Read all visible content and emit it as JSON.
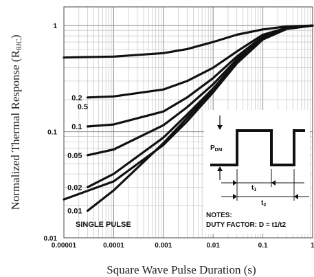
{
  "chart_data": {
    "type": "line",
    "xlabel": "Square Wave Pulse Duration (s)",
    "ylabel": "Normalized Thermal Response (R",
    "ylabel_sub": "θJC",
    "ylabel_close": ")",
    "x_scale": "log",
    "y_scale": "log",
    "xlim": [
      1e-05,
      1
    ],
    "ylim": [
      0.01,
      1.5
    ],
    "grid": true,
    "x_ticks": [
      "0.00001",
      "0.0001",
      "0.001",
      "0.01",
      "0.1",
      "1"
    ],
    "y_ticks": [
      "1",
      "0.1",
      "0.01"
    ],
    "series": [
      {
        "name": "0.5",
        "x": [
          1e-05,
          0.0001,
          0.001,
          0.003,
          0.01,
          0.03,
          0.1,
          0.3,
          1
        ],
        "y": [
          0.5,
          0.51,
          0.55,
          0.6,
          0.7,
          0.82,
          0.92,
          0.98,
          1.0
        ]
      },
      {
        "name": "0.2",
        "x": [
          3e-05,
          0.0001,
          0.001,
          0.003,
          0.01,
          0.03,
          0.1,
          0.3,
          1
        ],
        "y": [
          0.21,
          0.215,
          0.25,
          0.3,
          0.4,
          0.57,
          0.82,
          0.95,
          1.0
        ]
      },
      {
        "name": "0.1",
        "x": [
          3e-05,
          0.0001,
          0.001,
          0.003,
          0.01,
          0.03,
          0.1,
          0.3,
          1
        ],
        "y": [
          0.112,
          0.117,
          0.155,
          0.21,
          0.32,
          0.51,
          0.79,
          0.94,
          1.0
        ]
      },
      {
        "name": "0.05",
        "x": [
          3e-05,
          0.0001,
          0.001,
          0.003,
          0.01,
          0.03,
          0.1,
          0.3,
          1
        ],
        "y": [
          0.06,
          0.068,
          0.115,
          0.17,
          0.28,
          0.48,
          0.77,
          0.94,
          1.0
        ]
      },
      {
        "name": "0.02",
        "x": [
          3e-05,
          0.0001,
          0.001,
          0.003,
          0.01,
          0.03,
          0.1,
          0.3,
          1
        ],
        "y": [
          0.03,
          0.04,
          0.088,
          0.145,
          0.255,
          0.46,
          0.76,
          0.93,
          1.0
        ]
      },
      {
        "name": "0.01",
        "x": [
          3e-05,
          0.0001,
          0.001,
          0.003,
          0.01,
          0.03,
          0.1,
          0.3,
          1
        ],
        "y": [
          0.018,
          0.028,
          0.078,
          0.135,
          0.245,
          0.45,
          0.75,
          0.93,
          1.0
        ]
      },
      {
        "name": "SINGLE PULSE",
        "x": [
          1e-05,
          0.0001,
          0.001,
          0.003,
          0.01,
          0.03,
          0.1,
          0.3,
          1
        ],
        "y": [
          0.023,
          0.034,
          0.075,
          0.125,
          0.235,
          0.44,
          0.74,
          0.93,
          1.0
        ]
      }
    ],
    "annotations": {
      "inset_pdm": "P",
      "inset_pdm_sub": "DM",
      "inset_t1": "t",
      "inset_t1_sub": "1",
      "inset_t2": "t",
      "inset_t2_sub": "2",
      "notes_title": "NOTES:",
      "notes_text": "DUTY FACTOR: D = t1/t2"
    }
  }
}
